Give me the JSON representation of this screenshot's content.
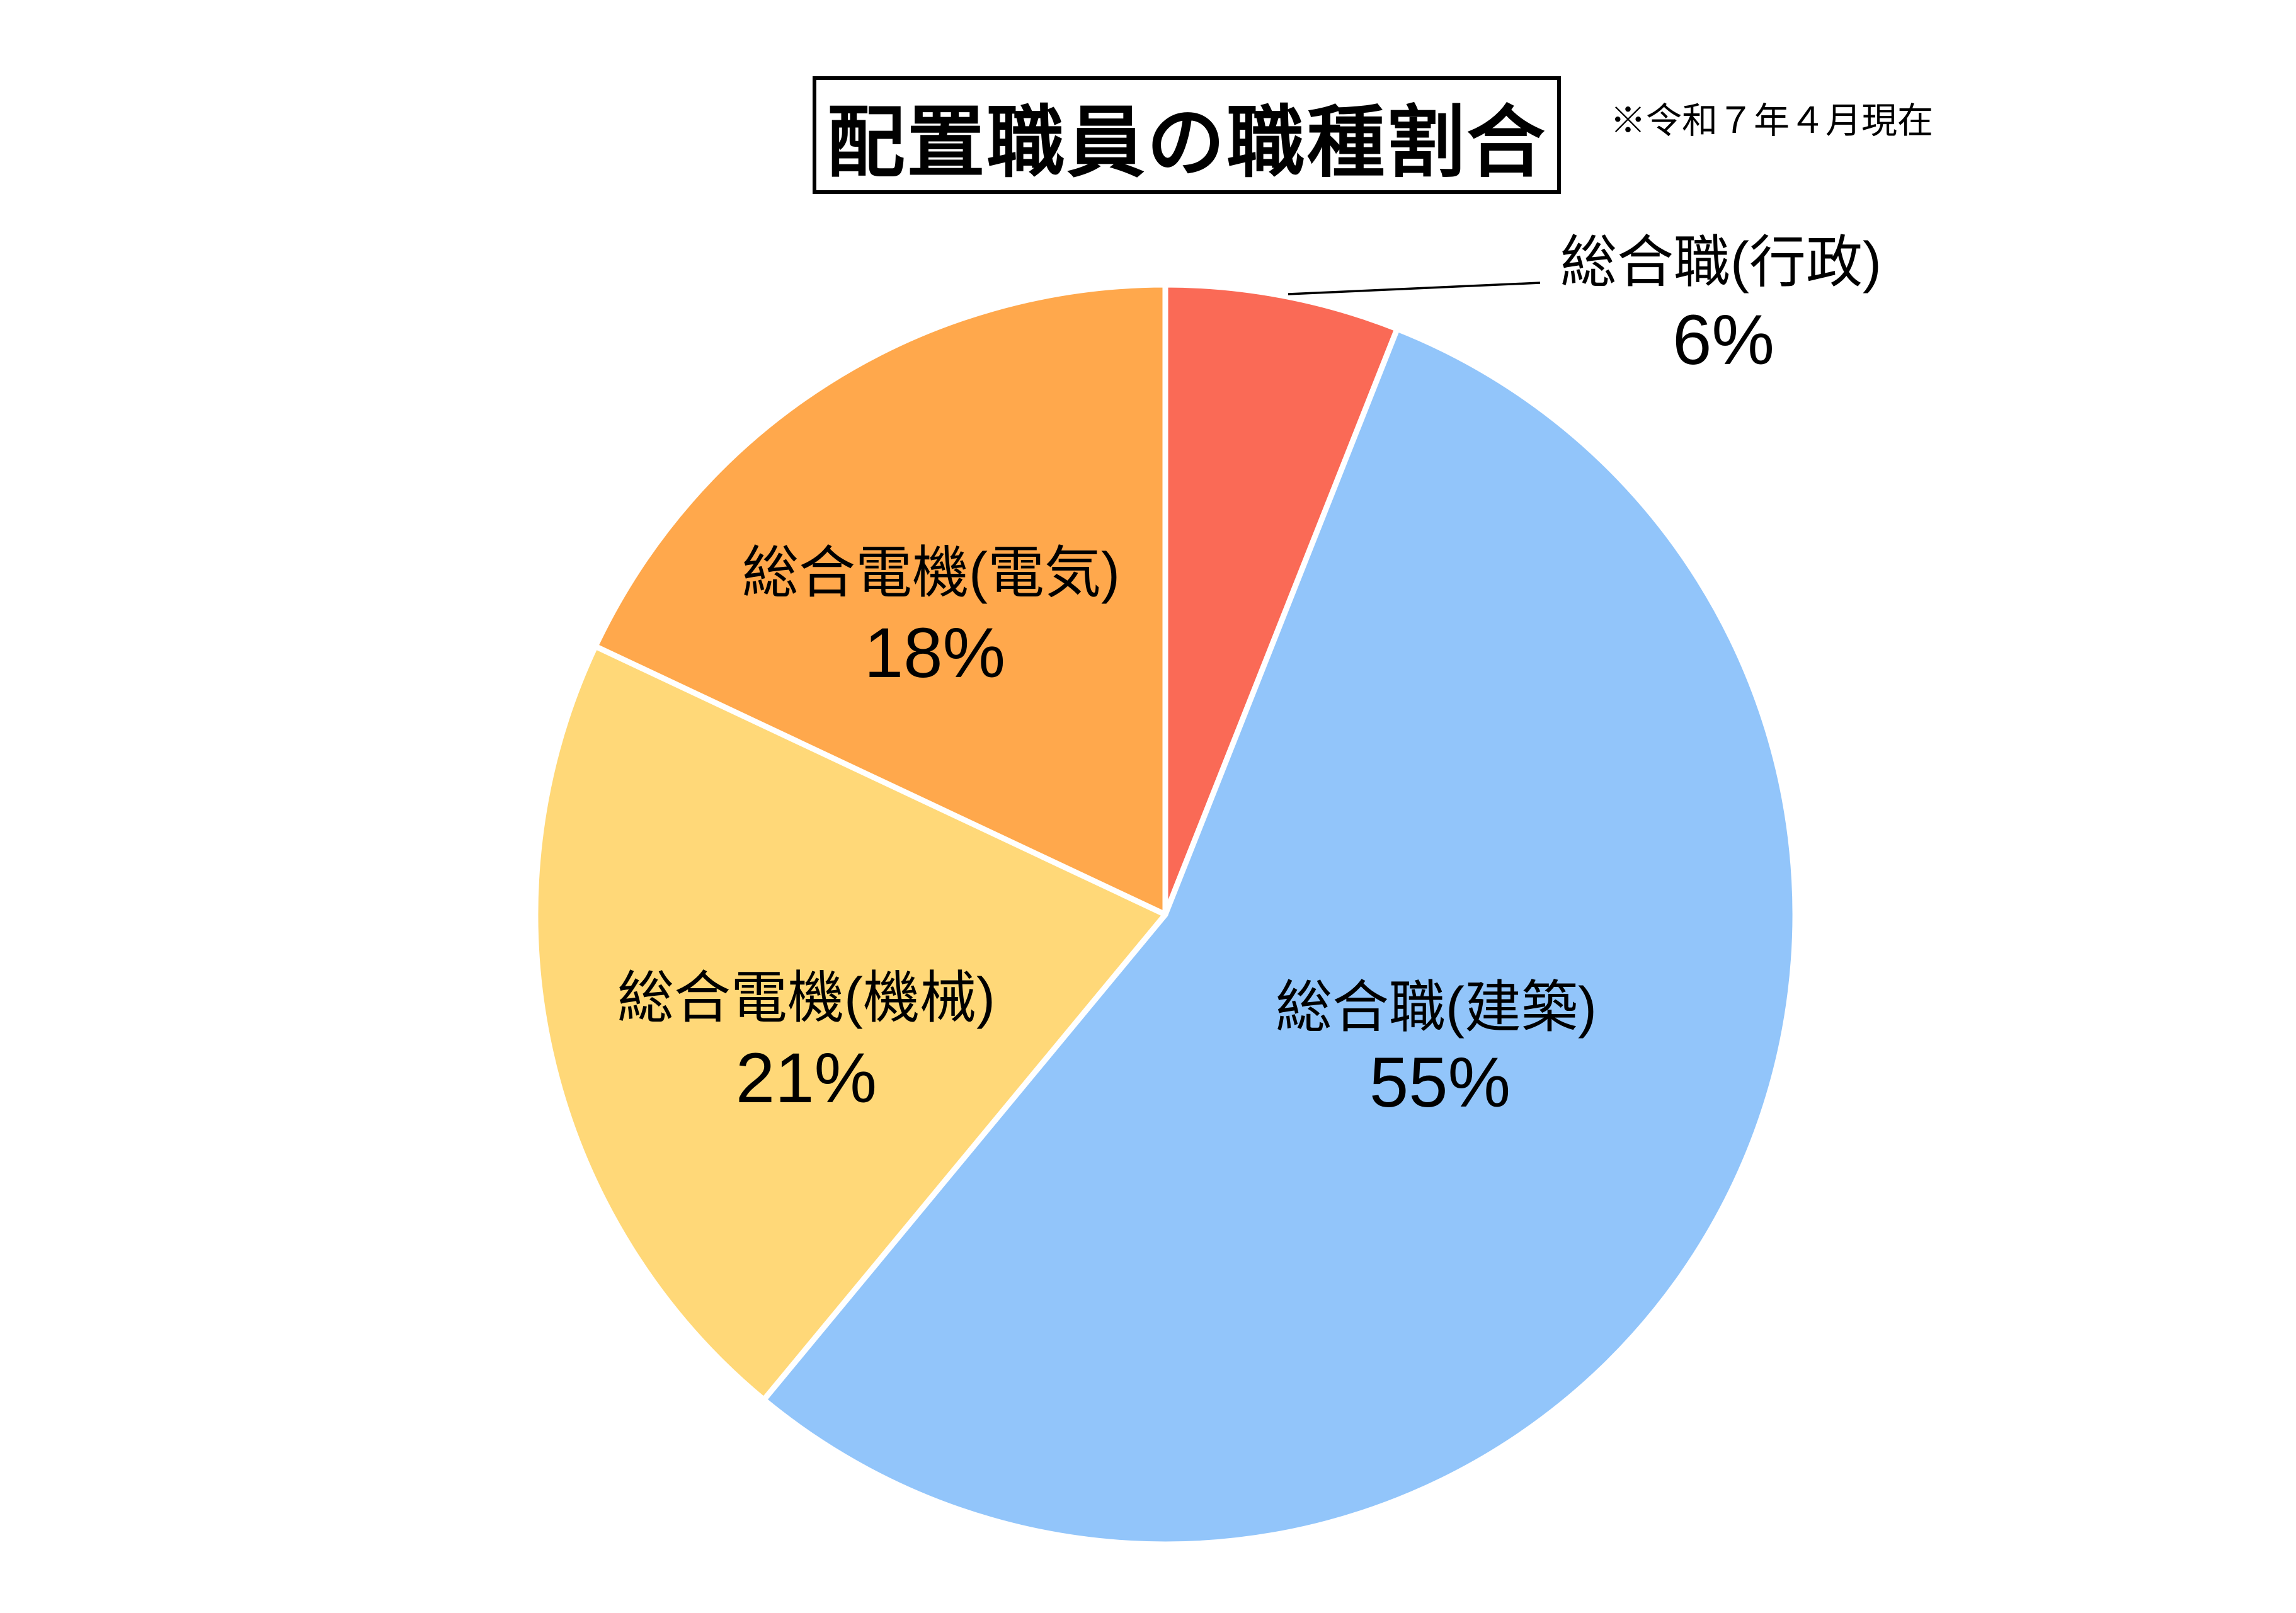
{
  "title": "配置職員の職種割合",
  "note": "※令和７年４月現在",
  "chart_data": {
    "type": "pie",
    "title": "配置職員の職種割合",
    "note": "※令和７年４月現在",
    "unit": "%",
    "start_angle": "12-oclock",
    "direction": "clockwise",
    "legend_position": "none",
    "slices": [
      {
        "label": "総合職(行政)",
        "value": 6,
        "pct_label": "6%",
        "color": "#FA6A56"
      },
      {
        "label": "総合職(建築)",
        "value": 55,
        "pct_label": "55%",
        "color": "#92C5FA"
      },
      {
        "label": "総合電機(機械)",
        "value": 21,
        "pct_label": "21%",
        "color": "#FFD878"
      },
      {
        "label": "総合電機(電気)",
        "value": 18,
        "pct_label": "18%",
        "color": "#FFA84C"
      }
    ],
    "separator_color": "#FFFFFF",
    "leader_line_color": "#000000"
  }
}
